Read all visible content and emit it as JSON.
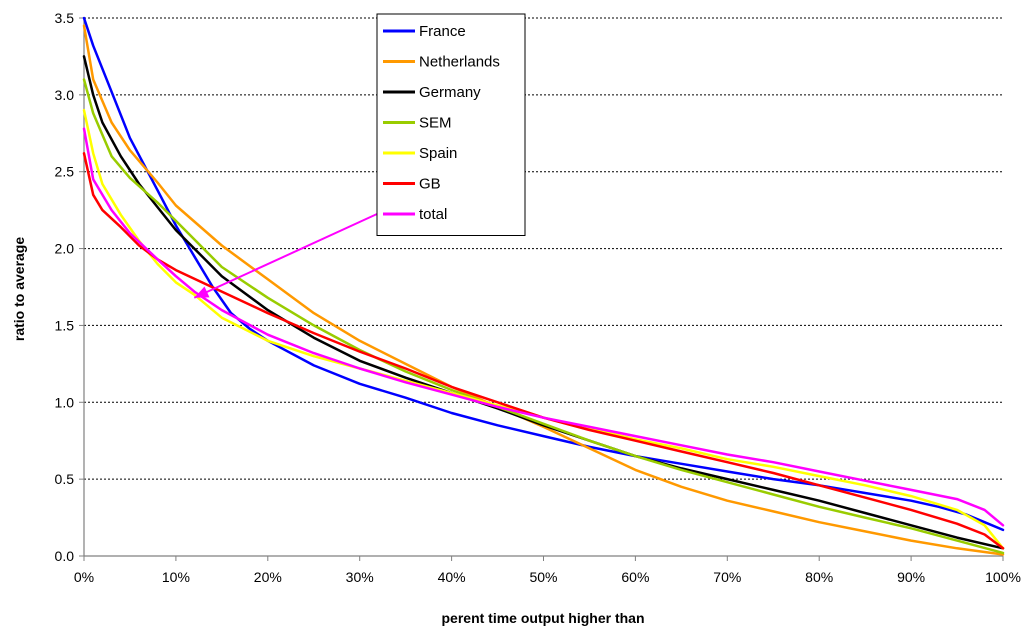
{
  "chart_data": {
    "type": "line",
    "title": "",
    "xlabel": "perent time output higher than",
    "ylabel": "ratio to average",
    "xlim": [
      0,
      100
    ],
    "ylim": [
      0,
      3.5
    ],
    "x_ticks": [
      "0%",
      "10%",
      "20%",
      "30%",
      "40%",
      "50%",
      "60%",
      "70%",
      "80%",
      "90%",
      "100%"
    ],
    "y_ticks": [
      "0.0",
      "0.5",
      "1.0",
      "1.5",
      "2.0",
      "2.5",
      "3.0",
      "3.5"
    ],
    "grid": "horizontal-dotted",
    "legend_position": "top-center",
    "series": [
      {
        "name": "France",
        "color": "#0000ff",
        "points": [
          [
            0,
            3.5
          ],
          [
            1,
            3.32
          ],
          [
            3,
            3.02
          ],
          [
            5,
            2.72
          ],
          [
            8,
            2.38
          ],
          [
            10,
            2.15
          ],
          [
            12,
            1.95
          ],
          [
            14,
            1.75
          ],
          [
            16,
            1.58
          ],
          [
            18,
            1.48
          ],
          [
            20,
            1.4
          ],
          [
            25,
            1.24
          ],
          [
            30,
            1.12
          ],
          [
            35,
            1.03
          ],
          [
            40,
            0.93
          ],
          [
            45,
            0.85
          ],
          [
            50,
            0.78
          ],
          [
            55,
            0.71
          ],
          [
            60,
            0.65
          ],
          [
            65,
            0.6
          ],
          [
            70,
            0.55
          ],
          [
            75,
            0.5
          ],
          [
            80,
            0.46
          ],
          [
            85,
            0.41
          ],
          [
            90,
            0.36
          ],
          [
            93,
            0.32
          ],
          [
            96,
            0.27
          ],
          [
            98,
            0.22
          ],
          [
            100,
            0.17
          ]
        ]
      },
      {
        "name": "Netherlands",
        "color": "#ff9900",
        "points": [
          [
            0,
            3.45
          ],
          [
            1,
            3.1
          ],
          [
            3,
            2.82
          ],
          [
            5,
            2.64
          ],
          [
            8,
            2.43
          ],
          [
            10,
            2.28
          ],
          [
            15,
            2.02
          ],
          [
            20,
            1.8
          ],
          [
            25,
            1.58
          ],
          [
            30,
            1.4
          ],
          [
            35,
            1.25
          ],
          [
            40,
            1.1
          ],
          [
            45,
            0.97
          ],
          [
            50,
            0.84
          ],
          [
            55,
            0.7
          ],
          [
            60,
            0.56
          ],
          [
            65,
            0.45
          ],
          [
            70,
            0.36
          ],
          [
            75,
            0.29
          ],
          [
            80,
            0.22
          ],
          [
            85,
            0.16
          ],
          [
            90,
            0.1
          ],
          [
            95,
            0.05
          ],
          [
            100,
            0.01
          ]
        ]
      },
      {
        "name": "Germany",
        "color": "#000000",
        "points": [
          [
            0,
            3.25
          ],
          [
            1,
            3.0
          ],
          [
            2,
            2.82
          ],
          [
            4,
            2.6
          ],
          [
            6,
            2.42
          ],
          [
            8,
            2.27
          ],
          [
            10,
            2.12
          ],
          [
            15,
            1.82
          ],
          [
            20,
            1.6
          ],
          [
            25,
            1.42
          ],
          [
            30,
            1.27
          ],
          [
            35,
            1.16
          ],
          [
            40,
            1.06
          ],
          [
            45,
            0.96
          ],
          [
            50,
            0.85
          ],
          [
            55,
            0.75
          ],
          [
            60,
            0.65
          ],
          [
            65,
            0.57
          ],
          [
            70,
            0.5
          ],
          [
            75,
            0.43
          ],
          [
            80,
            0.36
          ],
          [
            85,
            0.28
          ],
          [
            90,
            0.2
          ],
          [
            95,
            0.12
          ],
          [
            100,
            0.05
          ]
        ]
      },
      {
        "name": "SEM",
        "color": "#99cc00",
        "points": [
          [
            0,
            3.1
          ],
          [
            1,
            2.88
          ],
          [
            3,
            2.6
          ],
          [
            5,
            2.46
          ],
          [
            8,
            2.3
          ],
          [
            10,
            2.18
          ],
          [
            15,
            1.88
          ],
          [
            20,
            1.68
          ],
          [
            25,
            1.5
          ],
          [
            30,
            1.34
          ],
          [
            35,
            1.2
          ],
          [
            40,
            1.08
          ],
          [
            45,
            0.97
          ],
          [
            50,
            0.86
          ],
          [
            55,
            0.75
          ],
          [
            60,
            0.65
          ],
          [
            65,
            0.56
          ],
          [
            70,
            0.48
          ],
          [
            75,
            0.4
          ],
          [
            80,
            0.32
          ],
          [
            85,
            0.25
          ],
          [
            90,
            0.18
          ],
          [
            95,
            0.1
          ],
          [
            100,
            0.02
          ]
        ]
      },
      {
        "name": "Spain",
        "color": "#ffff00",
        "points": [
          [
            0,
            2.9
          ],
          [
            1,
            2.62
          ],
          [
            2,
            2.42
          ],
          [
            4,
            2.22
          ],
          [
            6,
            2.05
          ],
          [
            8,
            1.9
          ],
          [
            10,
            1.78
          ],
          [
            12,
            1.7
          ],
          [
            15,
            1.55
          ],
          [
            20,
            1.4
          ],
          [
            25,
            1.3
          ],
          [
            30,
            1.22
          ],
          [
            35,
            1.14
          ],
          [
            40,
            1.06
          ],
          [
            45,
            0.98
          ],
          [
            50,
            0.9
          ],
          [
            55,
            0.83
          ],
          [
            60,
            0.76
          ],
          [
            65,
            0.7
          ],
          [
            70,
            0.63
          ],
          [
            75,
            0.58
          ],
          [
            80,
            0.52
          ],
          [
            85,
            0.46
          ],
          [
            90,
            0.39
          ],
          [
            95,
            0.3
          ],
          [
            98,
            0.2
          ],
          [
            100,
            0.05
          ]
        ]
      },
      {
        "name": "GB",
        "color": "#ff0000",
        "points": [
          [
            0,
            2.62
          ],
          [
            1,
            2.35
          ],
          [
            2,
            2.25
          ],
          [
            4,
            2.14
          ],
          [
            6,
            2.02
          ],
          [
            8,
            1.93
          ],
          [
            10,
            1.86
          ],
          [
            15,
            1.72
          ],
          [
            20,
            1.58
          ],
          [
            25,
            1.45
          ],
          [
            30,
            1.33
          ],
          [
            35,
            1.22
          ],
          [
            40,
            1.1
          ],
          [
            45,
            1.0
          ],
          [
            50,
            0.9
          ],
          [
            55,
            0.82
          ],
          [
            60,
            0.75
          ],
          [
            65,
            0.68
          ],
          [
            70,
            0.61
          ],
          [
            75,
            0.54
          ],
          [
            80,
            0.46
          ],
          [
            85,
            0.38
          ],
          [
            90,
            0.3
          ],
          [
            95,
            0.21
          ],
          [
            98,
            0.14
          ],
          [
            100,
            0.05
          ]
        ]
      },
      {
        "name": "total",
        "color": "#ff00ff",
        "points": [
          [
            0,
            2.78
          ],
          [
            1,
            2.45
          ],
          [
            3,
            2.25
          ],
          [
            5,
            2.1
          ],
          [
            8,
            1.93
          ],
          [
            10,
            1.82
          ],
          [
            12,
            1.72
          ],
          [
            15,
            1.6
          ],
          [
            20,
            1.44
          ],
          [
            25,
            1.32
          ],
          [
            30,
            1.22
          ],
          [
            35,
            1.13
          ],
          [
            40,
            1.05
          ],
          [
            45,
            0.97
          ],
          [
            50,
            0.9
          ],
          [
            55,
            0.84
          ],
          [
            60,
            0.78
          ],
          [
            65,
            0.72
          ],
          [
            70,
            0.66
          ],
          [
            75,
            0.61
          ],
          [
            80,
            0.55
          ],
          [
            85,
            0.49
          ],
          [
            90,
            0.43
          ],
          [
            95,
            0.37
          ],
          [
            98,
            0.3
          ],
          [
            100,
            0.2
          ]
        ]
      }
    ],
    "annotation_arrow": {
      "color": "#ff00ff",
      "from_legend_series": "total",
      "to_point": [
        12,
        1.68
      ]
    }
  }
}
